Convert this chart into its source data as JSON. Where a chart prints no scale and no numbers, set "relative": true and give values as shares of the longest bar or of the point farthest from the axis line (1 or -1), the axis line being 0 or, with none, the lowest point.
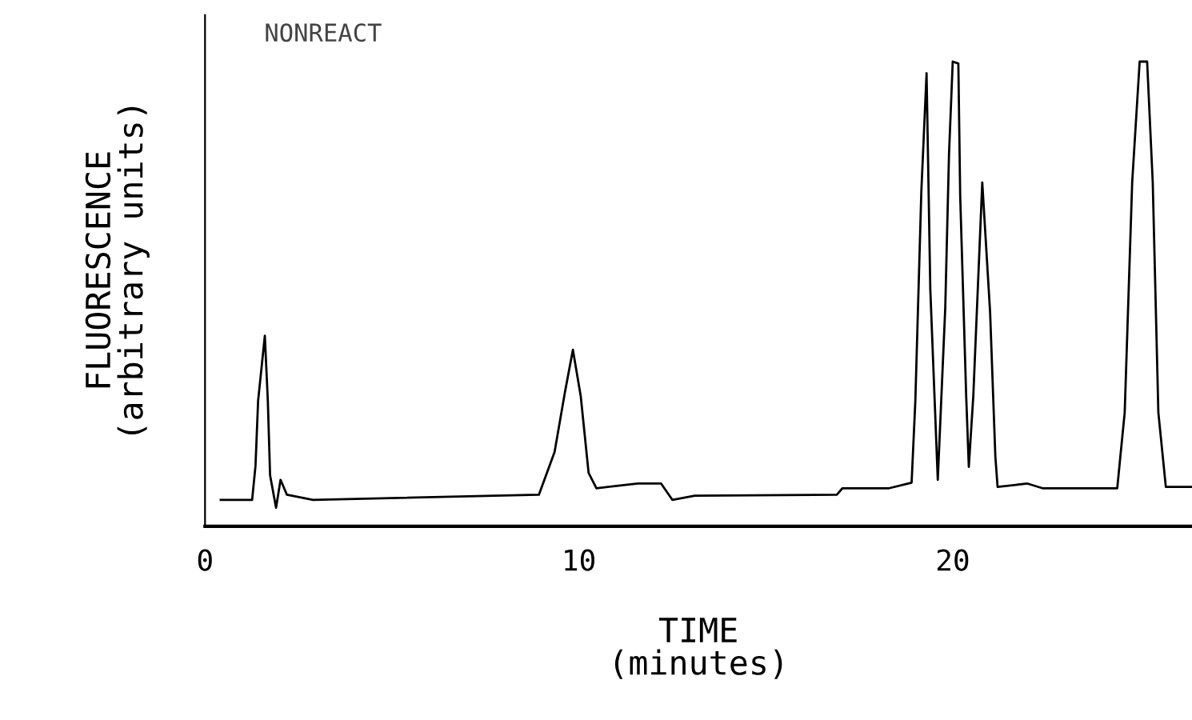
{
  "chart_data": {
    "type": "line",
    "relative": true,
    "xlabel": "TIME\n(minutes)",
    "ylabel": "FLUORESCENCE\n(arbitrary units)",
    "annotations": [
      "NONREACT"
    ],
    "xlim": [
      0,
      26.4
    ],
    "xticks": [
      0,
      10,
      20
    ],
    "grid": false,
    "legend": false,
    "marker": "none",
    "line_style": "solid",
    "series": [
      {
        "color": "#000000",
        "x": [
          0.42,
          1.26,
          1.35,
          1.42,
          1.6,
          1.68,
          1.74,
          1.9,
          2.02,
          2.19,
          2.89,
          8.93,
          9.35,
          9.63,
          9.84,
          10.05,
          10.26,
          10.47,
          11.58,
          12.2,
          12.5,
          13.1,
          16.9,
          17.05,
          18.3,
          18.9,
          19.0,
          19.16,
          19.3,
          19.4,
          19.6,
          19.8,
          19.9,
          20.0,
          20.15,
          20.2,
          20.36,
          20.43,
          20.55,
          20.79,
          21.0,
          21.14,
          21.2,
          22.0,
          22.4,
          24.4,
          24.6,
          24.8,
          25.0,
          25.2,
          25.35,
          25.5,
          25.7,
          26.4
        ],
        "values": [
          0.057,
          0.057,
          0.13,
          0.27,
          0.41,
          0.27,
          0.11,
          0.04,
          0.1,
          0.068,
          0.057,
          0.068,
          0.16,
          0.29,
          0.38,
          0.28,
          0.115,
          0.082,
          0.092,
          0.092,
          0.057,
          0.066,
          0.068,
          0.082,
          0.082,
          0.094,
          0.27,
          0.72,
          0.975,
          0.51,
          0.1,
          0.47,
          0.8,
          1.0,
          0.996,
          0.71,
          0.28,
          0.128,
          0.28,
          0.74,
          0.46,
          0.15,
          0.085,
          0.092,
          0.082,
          0.082,
          0.245,
          0.74,
          1.0,
          1.0,
          0.74,
          0.245,
          0.085,
          0.085
        ]
      }
    ]
  }
}
